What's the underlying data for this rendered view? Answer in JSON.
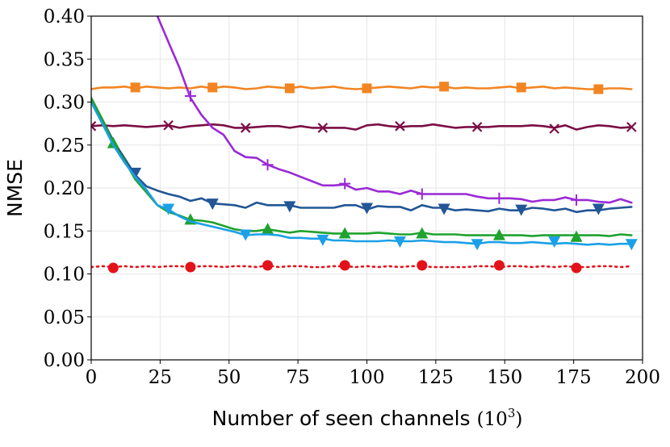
{
  "chart_data": {
    "type": "line",
    "xlabel": "Number of seen channels",
    "xlabel_unit_base": "(10",
    "xlabel_unit_exp": "3",
    "xlabel_unit_close": ")",
    "ylabel": "NMSE",
    "xlim": [
      0,
      200
    ],
    "ylim": [
      0,
      0.4
    ],
    "xticks": [
      "0",
      "25",
      "50",
      "75",
      "100",
      "125",
      "150",
      "175",
      "200"
    ],
    "yticks": [
      "0.00",
      "0.05",
      "0.10",
      "0.15",
      "0.20",
      "0.25",
      "0.30",
      "0.35",
      "0.40"
    ],
    "grid": true,
    "series": [
      {
        "color": "#f28522",
        "marker": "square",
        "dash": "",
        "x": [
          0,
          4,
          8,
          12,
          16,
          20,
          24,
          28,
          32,
          36,
          40,
          44,
          48,
          52,
          56,
          60,
          64,
          68,
          72,
          76,
          80,
          84,
          88,
          92,
          96,
          100,
          104,
          108,
          112,
          116,
          120,
          124,
          128,
          132,
          136,
          140,
          144,
          148,
          152,
          156,
          160,
          164,
          168,
          172,
          176,
          180,
          184,
          188,
          192,
          196
        ],
        "y": [
          0.315,
          0.317,
          0.317,
          0.318,
          0.316,
          0.318,
          0.317,
          0.316,
          0.317,
          0.316,
          0.318,
          0.316,
          0.318,
          0.317,
          0.315,
          0.316,
          0.318,
          0.317,
          0.316,
          0.318,
          0.316,
          0.317,
          0.318,
          0.316,
          0.315,
          0.316,
          0.317,
          0.318,
          0.317,
          0.316,
          0.318,
          0.317,
          0.318,
          0.316,
          0.317,
          0.316,
          0.316,
          0.317,
          0.318,
          0.316,
          0.317,
          0.318,
          0.316,
          0.317,
          0.316,
          0.315,
          0.315,
          0.316,
          0.316,
          0.315
        ],
        "markers_x": [
          16,
          44,
          72,
          100,
          128,
          156,
          184
        ],
        "markers_y": [
          0.317,
          0.317,
          0.316,
          0.316,
          0.318,
          0.317,
          0.315
        ]
      },
      {
        "color": "#7b0e45",
        "marker": "x",
        "dash": "",
        "x": [
          0,
          4,
          8,
          12,
          16,
          20,
          24,
          28,
          32,
          36,
          40,
          44,
          48,
          52,
          56,
          60,
          64,
          68,
          72,
          76,
          80,
          84,
          88,
          92,
          96,
          100,
          104,
          108,
          112,
          116,
          120,
          124,
          128,
          132,
          136,
          140,
          144,
          148,
          152,
          156,
          160,
          164,
          168,
          172,
          176,
          180,
          184,
          188,
          192,
          196
        ],
        "y": [
          0.272,
          0.273,
          0.272,
          0.273,
          0.272,
          0.271,
          0.272,
          0.273,
          0.27,
          0.272,
          0.273,
          0.274,
          0.273,
          0.27,
          0.27,
          0.271,
          0.272,
          0.272,
          0.27,
          0.272,
          0.27,
          0.27,
          0.27,
          0.27,
          0.268,
          0.273,
          0.274,
          0.272,
          0.271,
          0.272,
          0.272,
          0.274,
          0.272,
          0.27,
          0.271,
          0.271,
          0.271,
          0.272,
          0.272,
          0.272,
          0.273,
          0.272,
          0.27,
          0.273,
          0.268,
          0.271,
          0.273,
          0.272,
          0.27,
          0.271
        ],
        "markers_x": [
          0,
          28,
          56,
          84,
          112,
          140,
          168,
          196
        ],
        "markers_y": [
          0.272,
          0.273,
          0.27,
          0.27,
          0.272,
          0.271,
          0.269,
          0.271
        ]
      },
      {
        "color": "#9a2ad6",
        "marker": "plus",
        "dash": "",
        "x": [
          24,
          28,
          32,
          36,
          40,
          44,
          48,
          52,
          56,
          60,
          64,
          68,
          72,
          76,
          80,
          84,
          88,
          92,
          96,
          100,
          104,
          108,
          112,
          116,
          120,
          124,
          128,
          132,
          136,
          140,
          144,
          148,
          152,
          156,
          160,
          164,
          168,
          172,
          176,
          180,
          184,
          188,
          192,
          196
        ],
        "y": [
          0.4,
          0.37,
          0.34,
          0.305,
          0.285,
          0.27,
          0.262,
          0.243,
          0.236,
          0.235,
          0.227,
          0.222,
          0.218,
          0.213,
          0.208,
          0.203,
          0.203,
          0.204,
          0.198,
          0.2,
          0.196,
          0.196,
          0.193,
          0.197,
          0.193,
          0.193,
          0.193,
          0.193,
          0.193,
          0.19,
          0.188,
          0.188,
          0.188,
          0.187,
          0.184,
          0.186,
          0.186,
          0.189,
          0.186,
          0.186,
          0.184,
          0.183,
          0.187,
          0.183
        ],
        "markers_x": [
          36,
          64,
          92,
          120,
          148,
          176
        ],
        "markers_y": [
          0.307,
          0.227,
          0.205,
          0.193,
          0.188,
          0.186
        ]
      },
      {
        "color": "#225696",
        "marker": "triangle-down",
        "dash": "",
        "x": [
          0,
          4,
          8,
          12,
          16,
          20,
          24,
          28,
          32,
          36,
          40,
          44,
          48,
          52,
          56,
          60,
          64,
          68,
          72,
          76,
          80,
          84,
          88,
          92,
          96,
          100,
          104,
          108,
          112,
          116,
          120,
          124,
          128,
          132,
          136,
          140,
          144,
          148,
          152,
          156,
          160,
          164,
          168,
          172,
          176,
          180,
          184,
          188,
          192,
          196
        ],
        "y": [
          0.302,
          0.28,
          0.255,
          0.235,
          0.215,
          0.202,
          0.197,
          0.193,
          0.19,
          0.185,
          0.188,
          0.182,
          0.181,
          0.18,
          0.177,
          0.183,
          0.18,
          0.18,
          0.18,
          0.177,
          0.177,
          0.177,
          0.177,
          0.18,
          0.18,
          0.175,
          0.179,
          0.178,
          0.178,
          0.174,
          0.18,
          0.177,
          0.177,
          0.174,
          0.175,
          0.174,
          0.173,
          0.176,
          0.174,
          0.174,
          0.177,
          0.176,
          0.174,
          0.176,
          0.172,
          0.174,
          0.174,
          0.176,
          0.177,
          0.178
        ],
        "markers_x": [
          16,
          44,
          72,
          100,
          128,
          156,
          184
        ],
        "markers_y": [
          0.218,
          0.182,
          0.179,
          0.177,
          0.176,
          0.175,
          0.176
        ]
      },
      {
        "color": "#1fa22e",
        "marker": "triangle-up",
        "dash": "",
        "x": [
          0,
          4,
          8,
          12,
          16,
          20,
          24,
          28,
          32,
          36,
          40,
          44,
          48,
          52,
          56,
          60,
          64,
          68,
          72,
          76,
          80,
          84,
          88,
          92,
          96,
          100,
          104,
          108,
          112,
          116,
          120,
          124,
          128,
          132,
          136,
          140,
          144,
          148,
          152,
          156,
          160,
          164,
          168,
          172,
          176,
          180,
          184,
          188,
          192,
          196
        ],
        "y": [
          0.305,
          0.28,
          0.252,
          0.232,
          0.21,
          0.195,
          0.18,
          0.172,
          0.168,
          0.163,
          0.162,
          0.16,
          0.156,
          0.152,
          0.15,
          0.15,
          0.152,
          0.15,
          0.148,
          0.15,
          0.149,
          0.148,
          0.147,
          0.147,
          0.147,
          0.147,
          0.148,
          0.147,
          0.146,
          0.146,
          0.148,
          0.146,
          0.146,
          0.146,
          0.145,
          0.145,
          0.145,
          0.145,
          0.145,
          0.145,
          0.144,
          0.145,
          0.145,
          0.145,
          0.145,
          0.145,
          0.145,
          0.144,
          0.146,
          0.145
        ],
        "markers_x": [
          8,
          36,
          64,
          92,
          120,
          148,
          176
        ],
        "markers_y": [
          0.252,
          0.163,
          0.152,
          0.147,
          0.147,
          0.145,
          0.143
        ]
      },
      {
        "color": "#1ba0e8",
        "marker": "triangle-down",
        "dash": "",
        "x": [
          0,
          4,
          8,
          12,
          16,
          20,
          24,
          28,
          32,
          36,
          40,
          44,
          48,
          52,
          56,
          60,
          64,
          68,
          72,
          76,
          80,
          84,
          88,
          92,
          96,
          100,
          104,
          108,
          112,
          116,
          120,
          124,
          128,
          132,
          136,
          140,
          144,
          148,
          152,
          156,
          160,
          164,
          168,
          172,
          176,
          180,
          184,
          188,
          192,
          196
        ],
        "y": [
          0.3,
          0.275,
          0.25,
          0.23,
          0.213,
          0.198,
          0.18,
          0.175,
          0.167,
          0.161,
          0.158,
          0.155,
          0.152,
          0.149,
          0.145,
          0.146,
          0.146,
          0.145,
          0.142,
          0.142,
          0.141,
          0.141,
          0.139,
          0.139,
          0.138,
          0.138,
          0.138,
          0.139,
          0.138,
          0.138,
          0.139,
          0.138,
          0.137,
          0.137,
          0.136,
          0.135,
          0.137,
          0.137,
          0.136,
          0.136,
          0.137,
          0.136,
          0.135,
          0.136,
          0.135,
          0.134,
          0.135,
          0.134,
          0.135,
          0.135
        ],
        "markers_x": [
          28,
          56,
          84,
          112,
          140,
          168,
          196
        ],
        "markers_y": [
          0.176,
          0.146,
          0.14,
          0.138,
          0.135,
          0.138,
          0.135
        ]
      },
      {
        "color": "#e3121a",
        "marker": "circle",
        "dash": "2,5",
        "x": [
          0,
          4,
          8,
          12,
          16,
          20,
          24,
          28,
          32,
          36,
          40,
          44,
          48,
          52,
          56,
          60,
          64,
          68,
          72,
          76,
          80,
          84,
          88,
          92,
          96,
          100,
          104,
          108,
          112,
          116,
          120,
          124,
          128,
          132,
          136,
          140,
          144,
          148,
          152,
          156,
          160,
          164,
          168,
          172,
          176,
          180,
          184,
          188,
          192,
          196
        ],
        "y": [
          0.108,
          0.109,
          0.108,
          0.109,
          0.108,
          0.109,
          0.108,
          0.109,
          0.109,
          0.108,
          0.109,
          0.109,
          0.108,
          0.109,
          0.109,
          0.108,
          0.11,
          0.108,
          0.109,
          0.109,
          0.108,
          0.108,
          0.109,
          0.109,
          0.108,
          0.109,
          0.108,
          0.109,
          0.108,
          0.109,
          0.109,
          0.108,
          0.108,
          0.108,
          0.108,
          0.109,
          0.109,
          0.108,
          0.109,
          0.109,
          0.108,
          0.109,
          0.108,
          0.109,
          0.108,
          0.108,
          0.109,
          0.109,
          0.108,
          0.109
        ],
        "markers_x": [
          8,
          36,
          64,
          92,
          120,
          148,
          176
        ],
        "markers_y": [
          0.107,
          0.108,
          0.11,
          0.11,
          0.11,
          0.11,
          0.107
        ]
      }
    ]
  }
}
